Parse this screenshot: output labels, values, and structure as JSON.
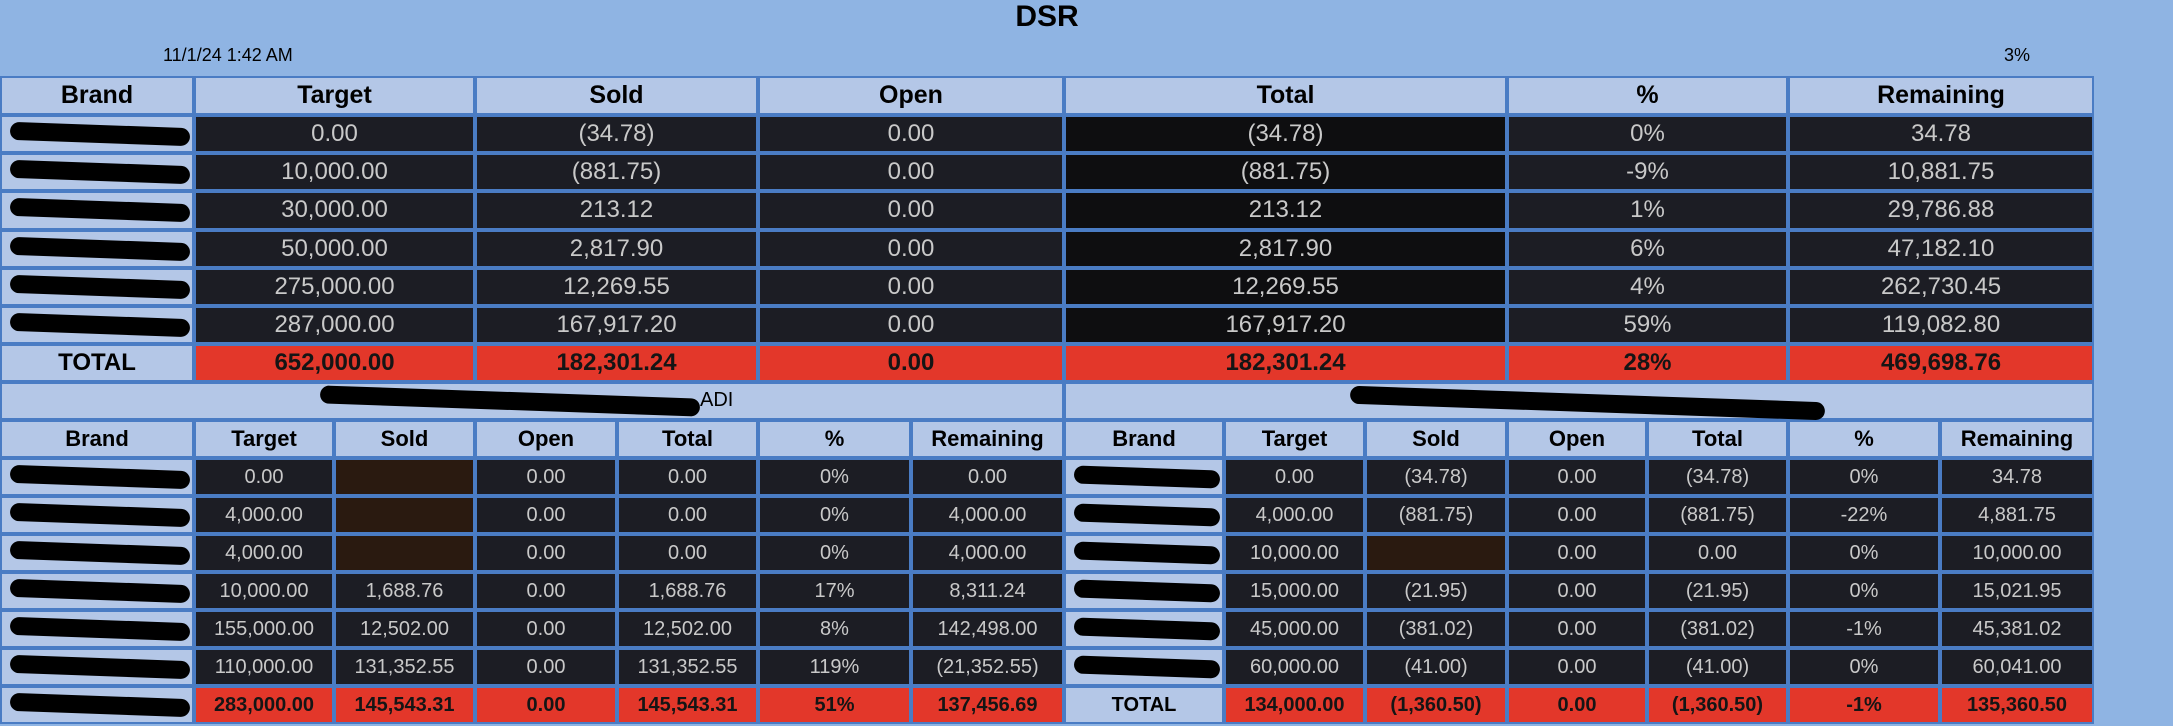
{
  "header": {
    "title": "DSR",
    "timestamp": "11/1/24 1:42 AM",
    "percent": "3%"
  },
  "main": {
    "columns": [
      "Brand",
      "Target",
      "Sold",
      "Open",
      "Total",
      "%",
      "Remaining"
    ],
    "rows": [
      [
        null,
        "0.00",
        "(34.78)",
        "0.00",
        "(34.78)",
        "0%",
        "34.78"
      ],
      [
        null,
        "10,000.00",
        "(881.75)",
        "0.00",
        "(881.75)",
        "-9%",
        "10,881.75"
      ],
      [
        null,
        "30,000.00",
        "213.12",
        "0.00",
        "213.12",
        "1%",
        "29,786.88"
      ],
      [
        null,
        "50,000.00",
        "2,817.90",
        "0.00",
        "2,817.90",
        "6%",
        "47,182.10"
      ],
      [
        null,
        "275,000.00",
        "12,269.55",
        "0.00",
        "12,269.55",
        "4%",
        "262,730.45"
      ],
      [
        null,
        "287,000.00",
        "167,917.20",
        "0.00",
        "167,917.20",
        "59%",
        "119,082.80"
      ]
    ],
    "total": [
      "TOTAL",
      "652,000.00",
      "182,301.24",
      "0.00",
      "182,301.24",
      "28%",
      "469,698.76"
    ]
  },
  "left": {
    "caption": "ADI",
    "columns": [
      "Brand",
      "Target",
      "Sold",
      "Open",
      "Total",
      "%",
      "Remaining"
    ],
    "rows": [
      [
        null,
        "0.00",
        null,
        "0.00",
        "0.00",
        "0%",
        "0.00"
      ],
      [
        null,
        "4,000.00",
        null,
        "0.00",
        "0.00",
        "0%",
        "4,000.00"
      ],
      [
        null,
        "4,000.00",
        null,
        "0.00",
        "0.00",
        "0%",
        "4,000.00"
      ],
      [
        null,
        "10,000.00",
        "1,688.76",
        "0.00",
        "1,688.76",
        "17%",
        "8,311.24"
      ],
      [
        null,
        "155,000.00",
        "12,502.00",
        "0.00",
        "12,502.00",
        "8%",
        "142,498.00"
      ],
      [
        null,
        "110,000.00",
        "131,352.55",
        "0.00",
        "131,352.55",
        "119%",
        "(21,352.55)"
      ]
    ],
    "total": [
      null,
      "283,000.00",
      "145,543.31",
      "0.00",
      "145,543.31",
      "51%",
      "137,456.69"
    ]
  },
  "right": {
    "columns": [
      "Brand",
      "Target",
      "Sold",
      "Open",
      "Total",
      "%",
      "Remaining"
    ],
    "rows": [
      [
        null,
        "0.00",
        "(34.78)",
        "0.00",
        "(34.78)",
        "0%",
        "34.78"
      ],
      [
        null,
        "4,000.00",
        "(881.75)",
        "0.00",
        "(881.75)",
        "-22%",
        "4,881.75"
      ],
      [
        null,
        "10,000.00",
        null,
        "0.00",
        "0.00",
        "0%",
        "10,000.00"
      ],
      [
        null,
        "15,000.00",
        "(21.95)",
        "0.00",
        "(21.95)",
        "0%",
        "15,021.95"
      ],
      [
        null,
        "45,000.00",
        "(381.02)",
        "0.00",
        "(381.02)",
        "-1%",
        "45,381.02"
      ],
      [
        null,
        "60,000.00",
        "(41.00)",
        "0.00",
        "(41.00)",
        "0%",
        "60,041.00"
      ]
    ],
    "total": [
      "TOTAL",
      "134,000.00",
      "(1,360.50)",
      "0.00",
      "(1,360.50)",
      "-1%",
      "135,360.50"
    ]
  }
}
